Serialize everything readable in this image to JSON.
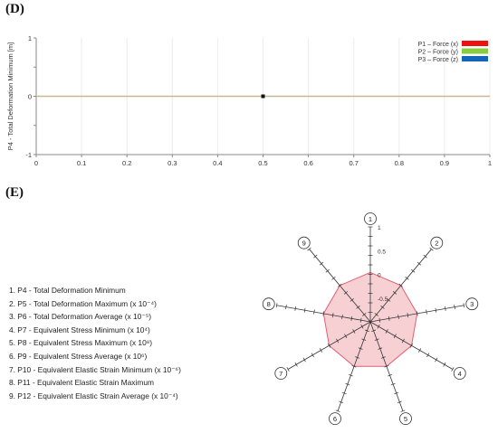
{
  "panels": {
    "d_label": "(D)",
    "e_label": "(E)"
  },
  "chart_data": [
    {
      "type": "line",
      "panel": "(D)",
      "ylabel": "P4 - Total Deformation Minimum [m]",
      "xlabel": "",
      "xlim": [
        0,
        1
      ],
      "ylim": [
        -1,
        1
      ],
      "x_ticks": [
        "0",
        "0.1",
        "0.2",
        "0.3",
        "0.4",
        "0.5",
        "0.6",
        "0.7",
        "0.8",
        "0.9",
        "1"
      ],
      "y_ticks": [
        "1",
        "0.5",
        "0",
        "-0.5",
        "-1"
      ],
      "grid": true,
      "legend_position": "top-right",
      "series": [
        {
          "name": "P1 – Force (x)",
          "color": "#ee1111",
          "x": [
            0,
            1
          ],
          "y": [
            0,
            0
          ]
        },
        {
          "name": "P2 – Force (y)",
          "color": "#88cc44",
          "x": [
            0,
            1
          ],
          "y": [
            0,
            0
          ]
        },
        {
          "name": "P3 – Force (z)",
          "color": "#1166bb",
          "x": [
            0,
            1
          ],
          "y": [
            0,
            0
          ]
        }
      ],
      "line_color": "#c8b89a",
      "marker": {
        "x": 0.5,
        "y": 0
      }
    },
    {
      "type": "radar",
      "panel": "(E)",
      "axes": [
        "1",
        "2",
        "3",
        "4",
        "5",
        "6",
        "7",
        "8",
        "9"
      ],
      "range": [
        -1,
        1
      ],
      "tick_labels": [
        "1",
        "0.5",
        "0",
        "-0.5"
      ],
      "tick_values": [
        1,
        0.5,
        0,
        -0.5
      ],
      "values": [
        0.04,
        0.0,
        0.0,
        0.0,
        0.0,
        0.0,
        0.0,
        0.0,
        0.0
      ],
      "fill_color": "#f6c8cc",
      "stroke_color": "#e06070",
      "legend_items": [
        "1. P4 - Total Deformation Minimum",
        "2. P5 - Total Deformation Maximum  (x 10⁻⁴)",
        "3. P6 - Total Deformation Average  (x 10⁻⁵)",
        "4. P7 - Equivalent Stress Minimum  (x 10⁴)",
        "5. P8 - Equivalent Stress Maximum  (x 10⁸)",
        "6. P9 - Equivalent Stress Average  (x 10⁶)",
        "7. P10 - Equivalent Elastic Strain Minimum  (x 10⁻⁶)",
        "8. P11 - Equivalent Elastic Strain Maximum",
        "9. P12 - Equivalent Elastic Strain Average  (x 10⁻⁴)"
      ]
    }
  ]
}
